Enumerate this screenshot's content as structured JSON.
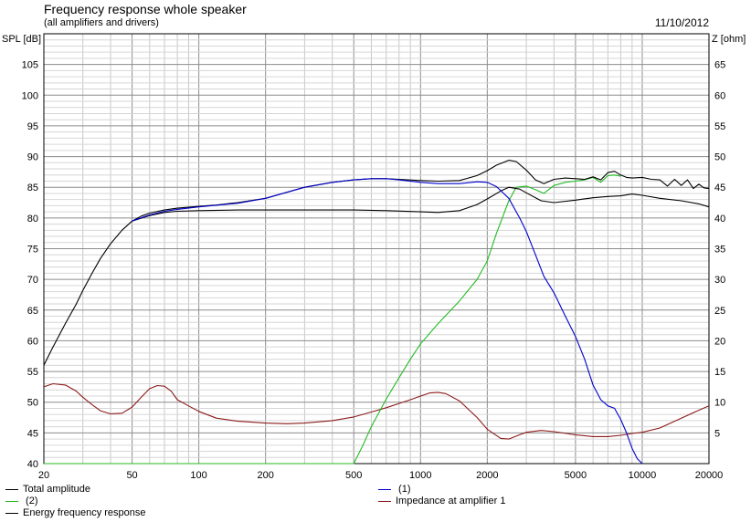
{
  "header": {
    "title": "Frequency response whole speaker",
    "subtitle": "(all amplifiers and drivers)",
    "date": "11/10/2012"
  },
  "chart_data": {
    "type": "line",
    "xscale": "log",
    "xlim": [
      20,
      20000
    ],
    "ylim": [
      40,
      110
    ],
    "y2lim": [
      0,
      70
    ],
    "ylabel": "SPL [dB]",
    "y2label": "Z [ohm]",
    "xticks": [
      "20",
      "50",
      "100",
      "200",
      "500",
      "1000",
      "2000",
      "5000",
      "10000",
      "20000"
    ],
    "xtick_values": [
      20,
      50,
      100,
      200,
      500,
      1000,
      2000,
      5000,
      10000,
      20000
    ],
    "yticks": [
      40,
      45,
      50,
      55,
      60,
      65,
      70,
      75,
      80,
      85,
      90,
      95,
      100,
      105
    ],
    "y2ticks": [
      "",
      "5",
      "10",
      "15",
      "20",
      "25",
      "30",
      "35",
      "40",
      "45",
      "50",
      "55",
      "60",
      "65"
    ],
    "grid": true,
    "series": [
      {
        "name": "Total amplitude",
        "color": "#000000",
        "axis": "left",
        "x": [
          20,
          22,
          25,
          28,
          30,
          33,
          36,
          40,
          45,
          50,
          55,
          60,
          70,
          80,
          100,
          120,
          150,
          200,
          250,
          300,
          400,
          500,
          600,
          700,
          800,
          1000,
          1200,
          1500,
          1800,
          2000,
          2200,
          2500,
          2700,
          3000,
          3300,
          3600,
          4000,
          4500,
          5000,
          5500,
          6000,
          6500,
          7000,
          7500,
          8000,
          8500,
          9000,
          10000,
          11000,
          12000,
          13000,
          14000,
          15000,
          16000,
          17000,
          18000,
          19000,
          20000
        ],
        "y": [
          56,
          59,
          62.8,
          66,
          68.2,
          71,
          73.4,
          75.8,
          78,
          79.5,
          80.3,
          80.8,
          81.3,
          81.6,
          81.9,
          82.1,
          82.5,
          83.2,
          84.2,
          85,
          85.8,
          86.2,
          86.4,
          86.4,
          86.3,
          86.1,
          86,
          86.1,
          86.9,
          87.7,
          88.6,
          89.4,
          89.2,
          87.8,
          86.2,
          85.6,
          86.3,
          86.5,
          86.4,
          86.3,
          86.7,
          86.2,
          87.4,
          87.6,
          87,
          86.6,
          86.5,
          86.6,
          86.3,
          86.2,
          85.2,
          86.3,
          85.3,
          86.2,
          84.8,
          85.5,
          84.9,
          84.8
        ]
      },
      {
        "name": "Energy frequency response",
        "color": "#000000",
        "axis": "left",
        "x": [
          50,
          60,
          70,
          80,
          100,
          150,
          200,
          300,
          500,
          700,
          1000,
          1200,
          1500,
          1800,
          2000,
          2300,
          2500,
          2800,
          3000,
          3500,
          4000,
          5000,
          6000,
          7000,
          8000,
          9000,
          10000,
          12000,
          15000,
          18000,
          20000
        ],
        "y": [
          79.5,
          80.4,
          80.9,
          81.1,
          81.2,
          81.3,
          81.3,
          81.3,
          81.3,
          81.2,
          81,
          80.9,
          81.2,
          82.2,
          83.1,
          84.4,
          85,
          84.7,
          84.1,
          82.8,
          82.5,
          82.9,
          83.3,
          83.5,
          83.6,
          83.9,
          83.7,
          83.2,
          82.8,
          82.3,
          81.8
        ]
      },
      {
        "name": "(1)",
        "color": "#0000cc",
        "axis": "left",
        "x": [
          50,
          60,
          70,
          80,
          100,
          150,
          200,
          300,
          400,
          500,
          600,
          700,
          800,
          1000,
          1200,
          1500,
          1800,
          2000,
          2200,
          2500,
          2800,
          3000,
          3300,
          3600,
          4000,
          4500,
          5000,
          5500,
          6000,
          6500,
          7000,
          7500,
          8000,
          8500,
          9000,
          9500,
          10000
        ],
        "y": [
          79.5,
          80.5,
          81.1,
          81.4,
          81.8,
          82.4,
          83.2,
          85,
          85.8,
          86.2,
          86.4,
          86.4,
          86.2,
          85.8,
          85.6,
          85.6,
          85.9,
          85.8,
          85.1,
          83.2,
          80,
          77.8,
          74,
          70.5,
          67.8,
          64,
          60.7,
          57,
          52.8,
          50.4,
          49.4,
          49,
          47.2,
          45,
          42.5,
          40.8,
          40
        ]
      },
      {
        "name": "(2)",
        "color": "#22bb22",
        "axis": "left",
        "x": [
          20,
          100,
          200,
          300,
          400,
          500,
          550,
          600,
          700,
          800,
          900,
          1000,
          1200,
          1500,
          1800,
          2000,
          2200,
          2500,
          2700,
          3000,
          3300,
          3600,
          4000,
          4500,
          5000,
          5500,
          6000,
          6500,
          7000,
          7500,
          8000
        ],
        "y": [
          40,
          40,
          40,
          40,
          40,
          40,
          43,
          46,
          50.5,
          54,
          57,
          59.5,
          62.8,
          66.5,
          70,
          73,
          77.5,
          82.8,
          85,
          85.2,
          84.6,
          84,
          85.3,
          85.8,
          86,
          86.2,
          86.6,
          85.8,
          86.9,
          87,
          86.8
        ]
      },
      {
        "name": "Impedance at amplifier 1",
        "color": "#8b1a1a",
        "axis": "right",
        "x": [
          20,
          22,
          25,
          28,
          30,
          33,
          36,
          40,
          45,
          50,
          55,
          60,
          65,
          70,
          75,
          80,
          90,
          100,
          120,
          150,
          200,
          250,
          300,
          400,
          500,
          600,
          700,
          800,
          900,
          1000,
          1100,
          1200,
          1300,
          1500,
          1800,
          2000,
          2300,
          2500,
          2800,
          3000,
          3500,
          4000,
          5000,
          6000,
          7000,
          8000,
          9000,
          10000,
          12000,
          15000,
          18000,
          20000
        ],
        "y": [
          12.5,
          13,
          12.8,
          11.8,
          10.8,
          9.6,
          8.6,
          8.1,
          8.2,
          9.2,
          10.8,
          12.2,
          12.7,
          12.6,
          11.8,
          10.4,
          9.4,
          8.5,
          7.4,
          6.9,
          6.6,
          6.5,
          6.6,
          7,
          7.6,
          8.4,
          9.1,
          9.8,
          10.4,
          11,
          11.5,
          11.6,
          11.4,
          10.2,
          7.5,
          5.6,
          4.1,
          4,
          4.7,
          5.1,
          5.4,
          5.2,
          4.7,
          4.4,
          4.4,
          4.6,
          4.9,
          5.1,
          5.8,
          7.4,
          8.7,
          9.4
        ]
      }
    ],
    "legend": [
      {
        "label": "Total amplitude",
        "color": "#000000"
      },
      {
        "label": " (2)",
        "color": "#22bb22"
      },
      {
        "label": "Energy frequency response",
        "color": "#000000"
      },
      {
        "label": " (1)",
        "color": "#0000cc"
      },
      {
        "label": "Impedance at amplifier 1",
        "color": "#8b1a1a"
      }
    ]
  }
}
